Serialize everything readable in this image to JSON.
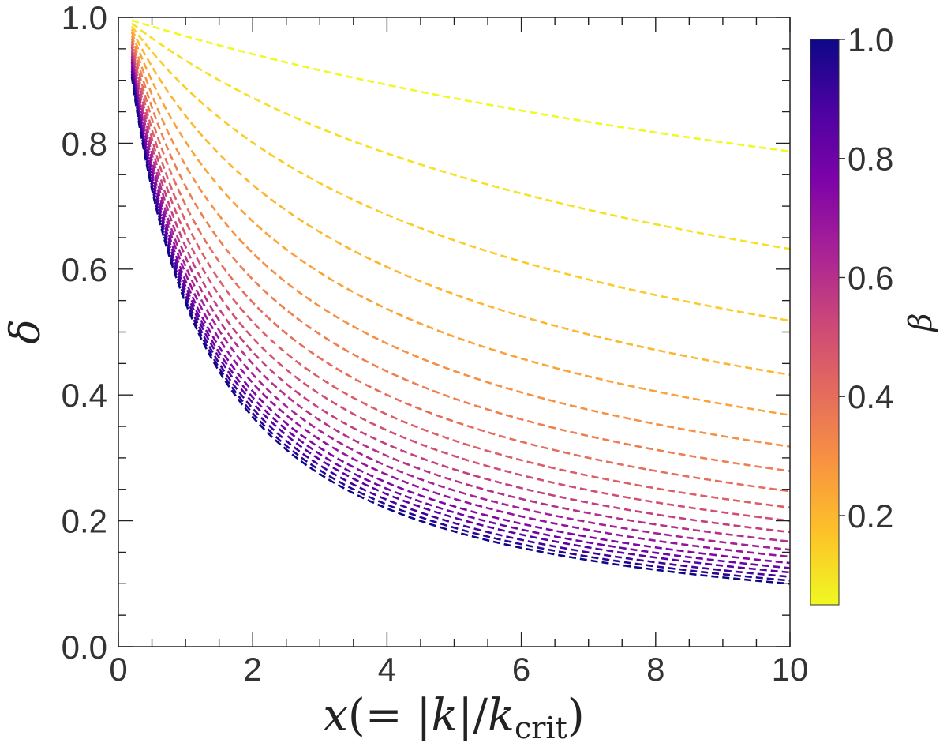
{
  "chart_data": {
    "type": "line",
    "title": "",
    "xlabel": {
      "x": "x",
      "open": "(= |",
      "k": "k",
      "mid": "|/",
      "k2": "k",
      "sub": "crit",
      "close": ")"
    },
    "ylabel": "δ",
    "xlim": [
      0,
      10
    ],
    "ylim": [
      0,
      1
    ],
    "x_ticks": [
      "0",
      "2",
      "4",
      "6",
      "8",
      "10"
    ],
    "y_ticks": [
      "0.0",
      "0.2",
      "0.4",
      "0.6",
      "0.8",
      "1.0"
    ],
    "line_style": "dashed",
    "x_start": 0.2,
    "x_end": 10,
    "series_beta": [
      0.05,
      0.1,
      0.15,
      0.2,
      0.25,
      0.3,
      0.35,
      0.4,
      0.45,
      0.5,
      0.55,
      0.6,
      0.65,
      0.7,
      0.75,
      0.8,
      0.85,
      0.9,
      0.95,
      1.0
    ],
    "series_end_values": [
      0.787,
      0.632,
      0.518,
      0.432,
      0.368,
      0.318,
      0.279,
      0.247,
      0.221,
      0.2,
      0.182,
      0.167,
      0.154,
      0.143,
      0.133,
      0.125,
      0.118,
      0.111,
      0.105,
      0.1
    ],
    "colorbar": {
      "label": "β",
      "range": [
        0.05,
        1.0
      ],
      "ticks": [
        "0.2",
        "0.4",
        "0.6",
        "0.8",
        "1.0"
      ],
      "tick_values": [
        0.2,
        0.4,
        0.6,
        0.8,
        1.0
      ],
      "colormap": "plasma_reversed",
      "colors": [
        "#f0f921",
        "#fdc328",
        "#f89441",
        "#e56b5d",
        "#cc4778",
        "#a82296",
        "#7e03a8",
        "#4c02a1",
        "#0d0887"
      ]
    }
  }
}
